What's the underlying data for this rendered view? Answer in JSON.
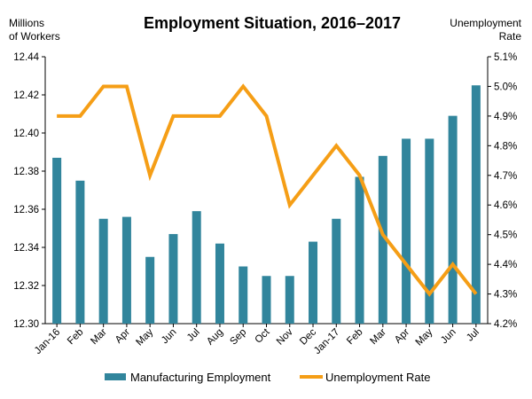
{
  "chart_data": {
    "type": "bar+line",
    "title": "Employment Situation, 2016–2017",
    "left_axis_title": [
      "Millions",
      "of Workers"
    ],
    "right_axis_title": [
      "Unemployment",
      "Rate"
    ],
    "categories": [
      "Jan-16",
      "Feb",
      "Mar",
      "Apr",
      "May",
      "Jun",
      "Jul",
      "Aug",
      "Sep",
      "Oct",
      "Nov",
      "Dec",
      "Jan-17",
      "Feb",
      "Mar",
      "Apr",
      "May",
      "Jun",
      "Jul"
    ],
    "left_ylim": [
      12.3,
      12.44
    ],
    "left_ticks": [
      "12.30",
      "12.32",
      "12.34",
      "12.36",
      "12.38",
      "12.40",
      "12.42",
      "12.44"
    ],
    "right_ylim": [
      4.2,
      5.1
    ],
    "right_ticks": [
      "4.2%",
      "4.3%",
      "4.4%",
      "4.5%",
      "4.6%",
      "4.7%",
      "4.8%",
      "4.9%",
      "5.0%",
      "5.1%"
    ],
    "series": [
      {
        "name": "Manufacturing Employment",
        "type": "bar",
        "axis": "left",
        "color": "#31859C",
        "values": [
          12.387,
          12.375,
          12.355,
          12.356,
          12.335,
          12.347,
          12.359,
          12.342,
          12.33,
          12.325,
          12.325,
          12.343,
          12.355,
          12.377,
          12.388,
          12.397,
          12.397,
          12.409,
          12.425
        ]
      },
      {
        "name": "Unemployment Rate",
        "type": "line",
        "axis": "right",
        "color": "#F59E16",
        "values": [
          4.9,
          4.9,
          5.0,
          5.0,
          4.7,
          4.9,
          4.9,
          4.9,
          5.0,
          4.9,
          4.6,
          4.7,
          4.8,
          4.7,
          4.5,
          4.4,
          4.3,
          4.4,
          4.3
        ]
      }
    ],
    "grid": false,
    "legend_position": "bottom"
  }
}
